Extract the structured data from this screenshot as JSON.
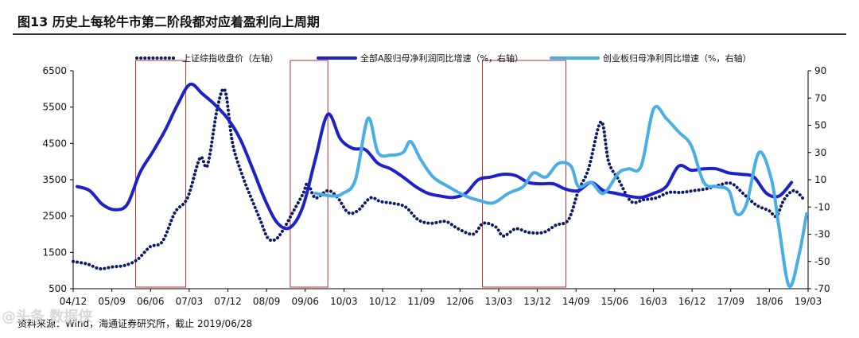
{
  "title": "图13 历史上每轮牛市第二阶段都对应着盈利向上周期",
  "source": "资料来源：Wind，海通证券研究所，截止 2019/06/28",
  "watermark": "@头条 数据侠",
  "colors": {
    "index": "#0d1a66",
    "profit_all": "#1d22c8",
    "profit_gem": "#4aaee6",
    "box": "#b03030"
  },
  "chart_data": {
    "type": "line",
    "x_labels": [
      "04/12",
      "05/09",
      "06/06",
      "07/03",
      "07/12",
      "08/09",
      "09/06",
      "10/03",
      "10/12",
      "11/09",
      "12/06",
      "13/03",
      "13/12",
      "14/09",
      "15/06",
      "16/03",
      "16/12",
      "17/09",
      "18/06",
      "19/03"
    ],
    "left_axis": {
      "ticks": [
        500,
        1500,
        2500,
        3500,
        4500,
        5500,
        6500
      ],
      "range": [
        500,
        6500
      ]
    },
    "right_axis": {
      "ticks": [
        -70,
        -50,
        -30,
        -10,
        10,
        30,
        50,
        70,
        90
      ],
      "range": [
        -70,
        90
      ]
    },
    "highlight_ranges": [
      [
        "06/03",
        "07/03"
      ],
      [
        "09/04",
        "10/01"
      ],
      [
        "13/02",
        "14/10"
      ]
    ],
    "series": [
      {
        "name": "上证综指收盘价（左轴）",
        "axis": "left",
        "style": "dotted",
        "points": [
          [
            2004.92,
            1250
          ],
          [
            2005.2,
            1180
          ],
          [
            2005.45,
            1050
          ],
          [
            2005.7,
            1100
          ],
          [
            2005.95,
            1140
          ],
          [
            2006.2,
            1300
          ],
          [
            2006.45,
            1650
          ],
          [
            2006.7,
            1800
          ],
          [
            2006.95,
            2600
          ],
          [
            2007.2,
            3000
          ],
          [
            2007.45,
            4100
          ],
          [
            2007.6,
            3900
          ],
          [
            2007.8,
            5500
          ],
          [
            2007.95,
            5950
          ],
          [
            2008.1,
            4500
          ],
          [
            2008.3,
            3600
          ],
          [
            2008.5,
            2900
          ],
          [
            2008.65,
            2400
          ],
          [
            2008.8,
            1900
          ],
          [
            2008.95,
            1850
          ],
          [
            2009.1,
            2100
          ],
          [
            2009.3,
            2600
          ],
          [
            2009.5,
            3100
          ],
          [
            2009.6,
            3400
          ],
          [
            2009.75,
            3000
          ],
          [
            2010.0,
            3200
          ],
          [
            2010.2,
            3000
          ],
          [
            2010.4,
            2600
          ],
          [
            2010.6,
            2650
          ],
          [
            2010.85,
            3000
          ],
          [
            2011.05,
            2900
          ],
          [
            2011.3,
            2850
          ],
          [
            2011.55,
            2750
          ],
          [
            2011.8,
            2400
          ],
          [
            2012.05,
            2300
          ],
          [
            2012.35,
            2350
          ],
          [
            2012.6,
            2150
          ],
          [
            2012.9,
            2000
          ],
          [
            2013.1,
            2300
          ],
          [
            2013.35,
            2200
          ],
          [
            2013.5,
            1950
          ],
          [
            2013.75,
            2150
          ],
          [
            2014.0,
            2050
          ],
          [
            2014.3,
            2050
          ],
          [
            2014.55,
            2250
          ],
          [
            2014.8,
            2400
          ],
          [
            2015.0,
            3200
          ],
          [
            2015.2,
            3800
          ],
          [
            2015.45,
            5100
          ],
          [
            2015.6,
            4000
          ],
          [
            2015.8,
            3500
          ],
          [
            2016.05,
            2900
          ],
          [
            2016.3,
            2950
          ],
          [
            2016.55,
            3000
          ],
          [
            2016.8,
            3150
          ],
          [
            2017.05,
            3150
          ],
          [
            2017.3,
            3200
          ],
          [
            2017.55,
            3250
          ],
          [
            2017.8,
            3350
          ],
          [
            2018.05,
            3400
          ],
          [
            2018.3,
            3100
          ],
          [
            2018.55,
            2800
          ],
          [
            2018.8,
            2650
          ],
          [
            2018.95,
            2500
          ],
          [
            2019.1,
            2950
          ],
          [
            2019.3,
            3200
          ],
          [
            2019.5,
            2950
          ]
        ]
      },
      {
        "name": "全部A股归母净利润同比增速（%，右轴）",
        "axis": "right",
        "style": "solid",
        "points": [
          [
            2005.0,
            5
          ],
          [
            2005.25,
            2
          ],
          [
            2005.5,
            -8
          ],
          [
            2005.75,
            -12
          ],
          [
            2006.0,
            -8
          ],
          [
            2006.25,
            15
          ],
          [
            2006.5,
            30
          ],
          [
            2006.75,
            46
          ],
          [
            2007.0,
            65
          ],
          [
            2007.25,
            80
          ],
          [
            2007.5,
            73
          ],
          [
            2007.75,
            65
          ],
          [
            2008.0,
            55
          ],
          [
            2008.25,
            40
          ],
          [
            2008.5,
            18
          ],
          [
            2008.75,
            -5
          ],
          [
            2009.0,
            -22
          ],
          [
            2009.25,
            -25
          ],
          [
            2009.5,
            -10
          ],
          [
            2009.75,
            25
          ],
          [
            2010.0,
            58
          ],
          [
            2010.25,
            40
          ],
          [
            2010.5,
            33
          ],
          [
            2010.75,
            32
          ],
          [
            2011.0,
            22
          ],
          [
            2011.25,
            18
          ],
          [
            2011.5,
            12
          ],
          [
            2011.75,
            5
          ],
          [
            2012.0,
            0
          ],
          [
            2012.25,
            -2
          ],
          [
            2012.5,
            -3
          ],
          [
            2012.75,
            0
          ],
          [
            2013.0,
            10
          ],
          [
            2013.25,
            12
          ],
          [
            2013.5,
            14
          ],
          [
            2013.75,
            13
          ],
          [
            2014.0,
            8
          ],
          [
            2014.25,
            7
          ],
          [
            2014.5,
            7
          ],
          [
            2014.75,
            3
          ],
          [
            2015.0,
            2
          ],
          [
            2015.25,
            8
          ],
          [
            2015.5,
            2
          ],
          [
            2015.75,
            0
          ],
          [
            2016.0,
            -2
          ],
          [
            2016.25,
            -3
          ],
          [
            2016.5,
            0
          ],
          [
            2016.75,
            5
          ],
          [
            2017.0,
            20
          ],
          [
            2017.25,
            17
          ],
          [
            2017.5,
            18
          ],
          [
            2017.75,
            18
          ],
          [
            2018.0,
            15
          ],
          [
            2018.25,
            14
          ],
          [
            2018.5,
            12
          ],
          [
            2018.75,
            0
          ],
          [
            2019.0,
            -2
          ],
          [
            2019.25,
            8
          ]
        ]
      },
      {
        "name": "创业板归母净利同比增速（%，右轴）",
        "axis": "right",
        "style": "solid",
        "points": [
          [
            2009.75,
            0
          ],
          [
            2010.1,
            -2
          ],
          [
            2010.3,
            0
          ],
          [
            2010.55,
            10
          ],
          [
            2010.8,
            55
          ],
          [
            2011.0,
            30
          ],
          [
            2011.25,
            28
          ],
          [
            2011.5,
            30
          ],
          [
            2011.65,
            38
          ],
          [
            2011.85,
            25
          ],
          [
            2012.1,
            12
          ],
          [
            2012.4,
            5
          ],
          [
            2012.75,
            -2
          ],
          [
            2013.0,
            -5
          ],
          [
            2013.3,
            -7
          ],
          [
            2013.6,
            0
          ],
          [
            2013.9,
            5
          ],
          [
            2014.1,
            15
          ],
          [
            2014.35,
            12
          ],
          [
            2014.6,
            22
          ],
          [
            2014.85,
            20
          ],
          [
            2015.0,
            5
          ],
          [
            2015.25,
            8
          ],
          [
            2015.5,
            0
          ],
          [
            2015.8,
            15
          ],
          [
            2016.0,
            18
          ],
          [
            2016.25,
            20
          ],
          [
            2016.5,
            62
          ],
          [
            2016.75,
            55
          ],
          [
            2017.0,
            45
          ],
          [
            2017.25,
            35
          ],
          [
            2017.5,
            8
          ],
          [
            2017.75,
            5
          ],
          [
            2018.0,
            2
          ],
          [
            2018.15,
            -15
          ],
          [
            2018.35,
            -8
          ],
          [
            2018.6,
            30
          ],
          [
            2018.85,
            10
          ],
          [
            2019.0,
            -25
          ],
          [
            2019.2,
            -68
          ],
          [
            2019.4,
            -45
          ],
          [
            2019.55,
            -15
          ]
        ]
      }
    ]
  }
}
